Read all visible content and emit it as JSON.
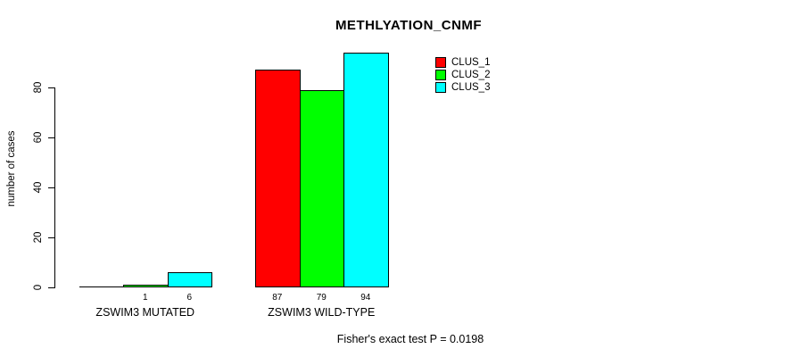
{
  "chart_data": {
    "type": "bar",
    "title": "METHLYATION_CNMF",
    "ylabel": "number of cases",
    "xlabel": "",
    "categories": [
      "ZSWIM3 MUTATED",
      "ZSWIM3 WILD-TYPE"
    ],
    "series": [
      {
        "name": "CLUS_1",
        "color": "#ff0000",
        "values": [
          0,
          87
        ]
      },
      {
        "name": "CLUS_2",
        "color": "#00ff00",
        "values": [
          1,
          79
        ]
      },
      {
        "name": "CLUS_3",
        "color": "#00ffff",
        "values": [
          6,
          94
        ]
      }
    ],
    "bar_value_labels": [
      [
        "",
        "1",
        "6"
      ],
      [
        "87",
        "79",
        "94"
      ]
    ],
    "yticks": [
      0,
      20,
      40,
      60,
      80
    ],
    "ylim": [
      0,
      94
    ],
    "grid": false,
    "legend_position": "top-right",
    "legend_entries": [
      "CLUS_1",
      "CLUS_2",
      "CLUS_3"
    ],
    "annotation": "Fisher's exact test P = 0.0198",
    "axis_color": "#000000",
    "background_color": "#ffffff"
  }
}
